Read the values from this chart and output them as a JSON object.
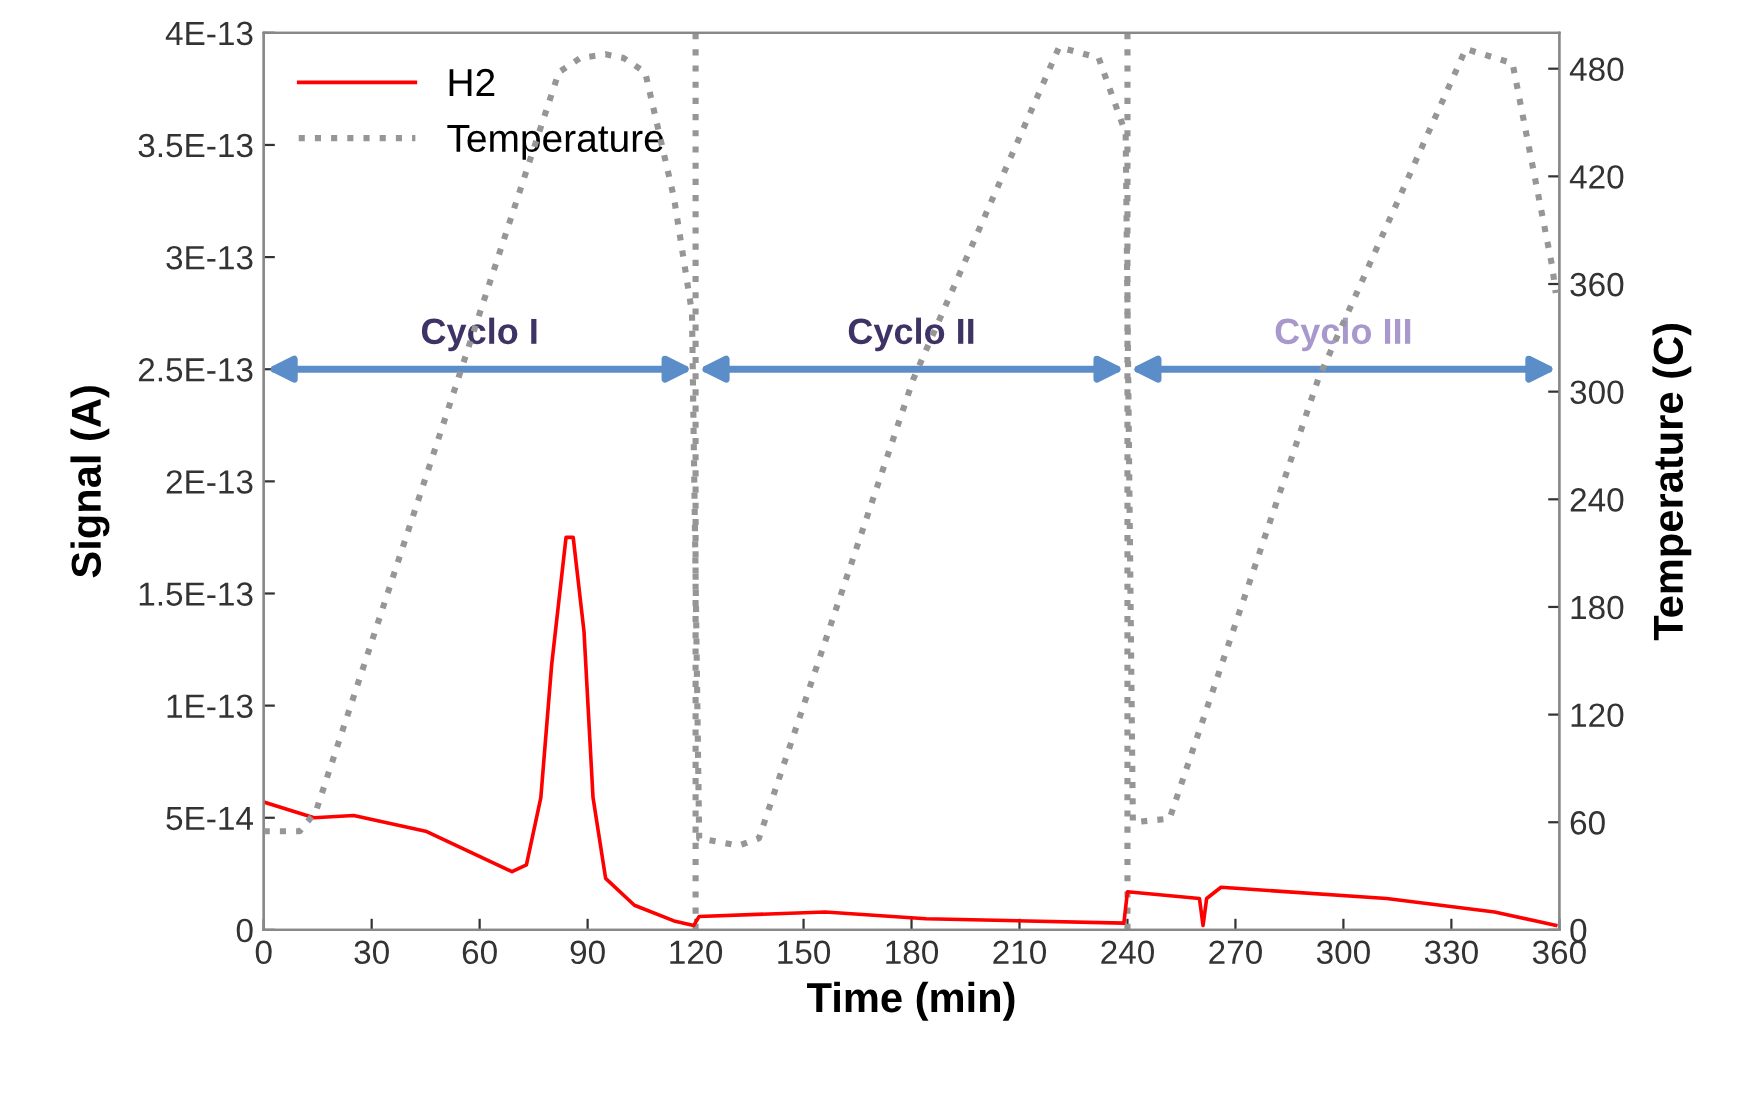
{
  "chart_data": {
    "type": "line",
    "xlabel": "Time (min)",
    "ylabel": "Signal (A)",
    "y2label": "Temperature (C)",
    "xlim": [
      0,
      360
    ],
    "xticks": [
      0,
      30,
      60,
      90,
      120,
      150,
      180,
      210,
      240,
      270,
      300,
      330,
      360
    ],
    "ylim": [
      0,
      4e-13
    ],
    "yticks": [
      0,
      {
        "value": 5e-14,
        "label": "5E-14"
      },
      {
        "value": 1e-13,
        "label": "1E-13"
      },
      {
        "value": 1.5e-13,
        "label": "1.5E-13"
      },
      {
        "value": 2e-13,
        "label": "2E-13"
      },
      {
        "value": 2.5e-13,
        "label": "2.5E-13"
      },
      {
        "value": 3e-13,
        "label": "3E-13"
      },
      {
        "value": 3.5e-13,
        "label": "3.5E-13"
      },
      {
        "value": 4e-13,
        "label": "4E-13"
      }
    ],
    "y2lim": [
      0,
      500
    ],
    "y2ticks": [
      0,
      60,
      120,
      180,
      240,
      300,
      360,
      420,
      480
    ],
    "legend": "top left",
    "grid": false,
    "series": [
      {
        "name": "H2",
        "color": "#ff0000",
        "line_style": "solid",
        "x": [
          0,
          14,
          25,
          45,
          69,
          73,
          77,
          80,
          84,
          86,
          89,
          91.5,
          95,
          103,
          114,
          119.5,
          121,
          156,
          184,
          239,
          240,
          260,
          261,
          262,
          266,
          312,
          342,
          359
        ],
        "values": [
          5.7e-14,
          5e-14,
          5.1e-14,
          4.4e-14,
          2.6e-14,
          2.9e-14,
          5.9e-14,
          1.18e-13,
          1.75e-13,
          1.75e-13,
          1.33e-13,
          5.9e-14,
          2.3e-14,
          1.1e-14,
          4e-15,
          2e-15,
          6e-15,
          8e-15,
          5e-15,
          3e-15,
          1.7e-14,
          1.4e-14,
          2e-15,
          1.4e-14,
          1.9e-14,
          1.4e-14,
          8e-15,
          2e-15
        ]
      },
      {
        "name": "Temperature",
        "color": "#969696",
        "line_style": "dotted",
        "axis": "y2",
        "x": [
          0,
          10,
          14.5,
          54,
          82,
          88,
          95,
          100,
          106,
          114,
          119,
          121,
          132,
          137.6,
          180.5,
          221,
          232,
          239.5,
          241.5,
          251.7,
          293,
          334,
          347,
          358,
          359
        ],
        "values": [
          55,
          55,
          66,
          307,
          478,
          486,
          488,
          486,
          478,
          408,
          344,
          51,
          47,
          51,
          307,
          492,
          486,
          444,
          60,
          62,
          307,
          491,
          483,
          370,
          355
        ]
      }
    ],
    "ref_lines": [
      {
        "axis": "x",
        "value": 120,
        "color": "#969696",
        "line_style": "dotted"
      },
      {
        "axis": "x",
        "value": 240,
        "color": "#969696",
        "line_style": "dotted"
      }
    ],
    "annotations": [
      "Cyclo I",
      "Cyclo II",
      "Cyclo III"
    ]
  }
}
